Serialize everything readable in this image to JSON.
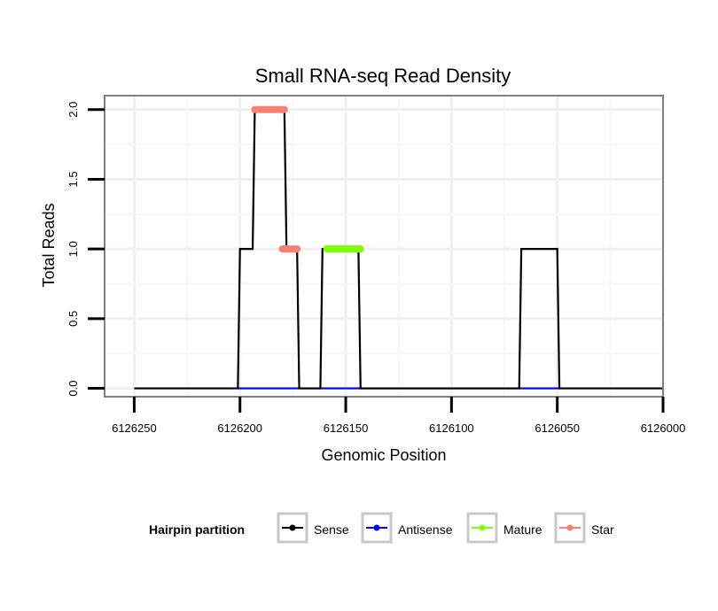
{
  "chart_data": {
    "type": "line",
    "title": "Small RNA-seq Read Density",
    "xlabel": "Genomic Position",
    "ylabel": "Total Reads",
    "xlim": [
      6126264,
      6126000
    ],
    "x_reversed": true,
    "ylim": [
      -0.06,
      2.1
    ],
    "x_ticks": [
      6126250,
      6126200,
      6126150,
      6126100,
      6126050,
      6126000
    ],
    "x_tick_labels": [
      "6126250",
      "6126200",
      "6126150",
      "6126100",
      "6126050",
      "6126000"
    ],
    "y_ticks": [
      0,
      0.5,
      1,
      1.5,
      2
    ],
    "y_tick_labels": [
      "0.0",
      "0.5",
      "1.0",
      "1.5",
      "2.0"
    ],
    "grid": true,
    "legend": {
      "title": "Hairpin partition",
      "position": "bottom",
      "entries": [
        {
          "label": "Sense",
          "color": "#000000"
        },
        {
          "label": "Antisense",
          "color": "#0000ff"
        },
        {
          "label": "Mature",
          "color": "#7fff00"
        },
        {
          "label": "Star",
          "color": "#fa8072"
        }
      ]
    },
    "series": [
      {
        "name": "Sense",
        "color": "#000000",
        "style": "line",
        "points": [
          [
            6126250,
            0
          ],
          [
            6126201,
            0
          ],
          [
            6126200,
            1
          ],
          [
            6126194,
            1
          ],
          [
            6126193,
            2
          ],
          [
            6126179,
            2
          ],
          [
            6126178,
            1
          ],
          [
            6126173,
            1
          ],
          [
            6126172,
            0
          ],
          [
            6126162,
            0
          ],
          [
            6126161,
            1
          ],
          [
            6126144,
            1
          ],
          [
            6126143,
            0
          ],
          [
            6126068,
            0
          ],
          [
            6126067,
            1
          ],
          [
            6126050,
            1
          ],
          [
            6126049,
            0
          ],
          [
            6126000,
            0
          ]
        ]
      },
      {
        "name": "Antisense",
        "color": "#0000ff",
        "style": "line",
        "points": [
          [
            6126201,
            0
          ],
          [
            6126172,
            0
          ],
          [
            6126162,
            0
          ],
          [
            6126143,
            0
          ],
          [
            6126068,
            0
          ],
          [
            6126049,
            0
          ]
        ]
      },
      {
        "name": "Mature",
        "color": "#7fff00",
        "style": "points",
        "points": [
          [
            6126159,
            1
          ],
          [
            6126143,
            1
          ]
        ]
      },
      {
        "name": "Star",
        "color": "#fa8072",
        "style": "points",
        "points": [
          [
            6126193,
            2
          ],
          [
            6126179,
            2
          ],
          [
            6126180,
            1
          ],
          [
            6126173,
            1
          ]
        ]
      }
    ]
  }
}
